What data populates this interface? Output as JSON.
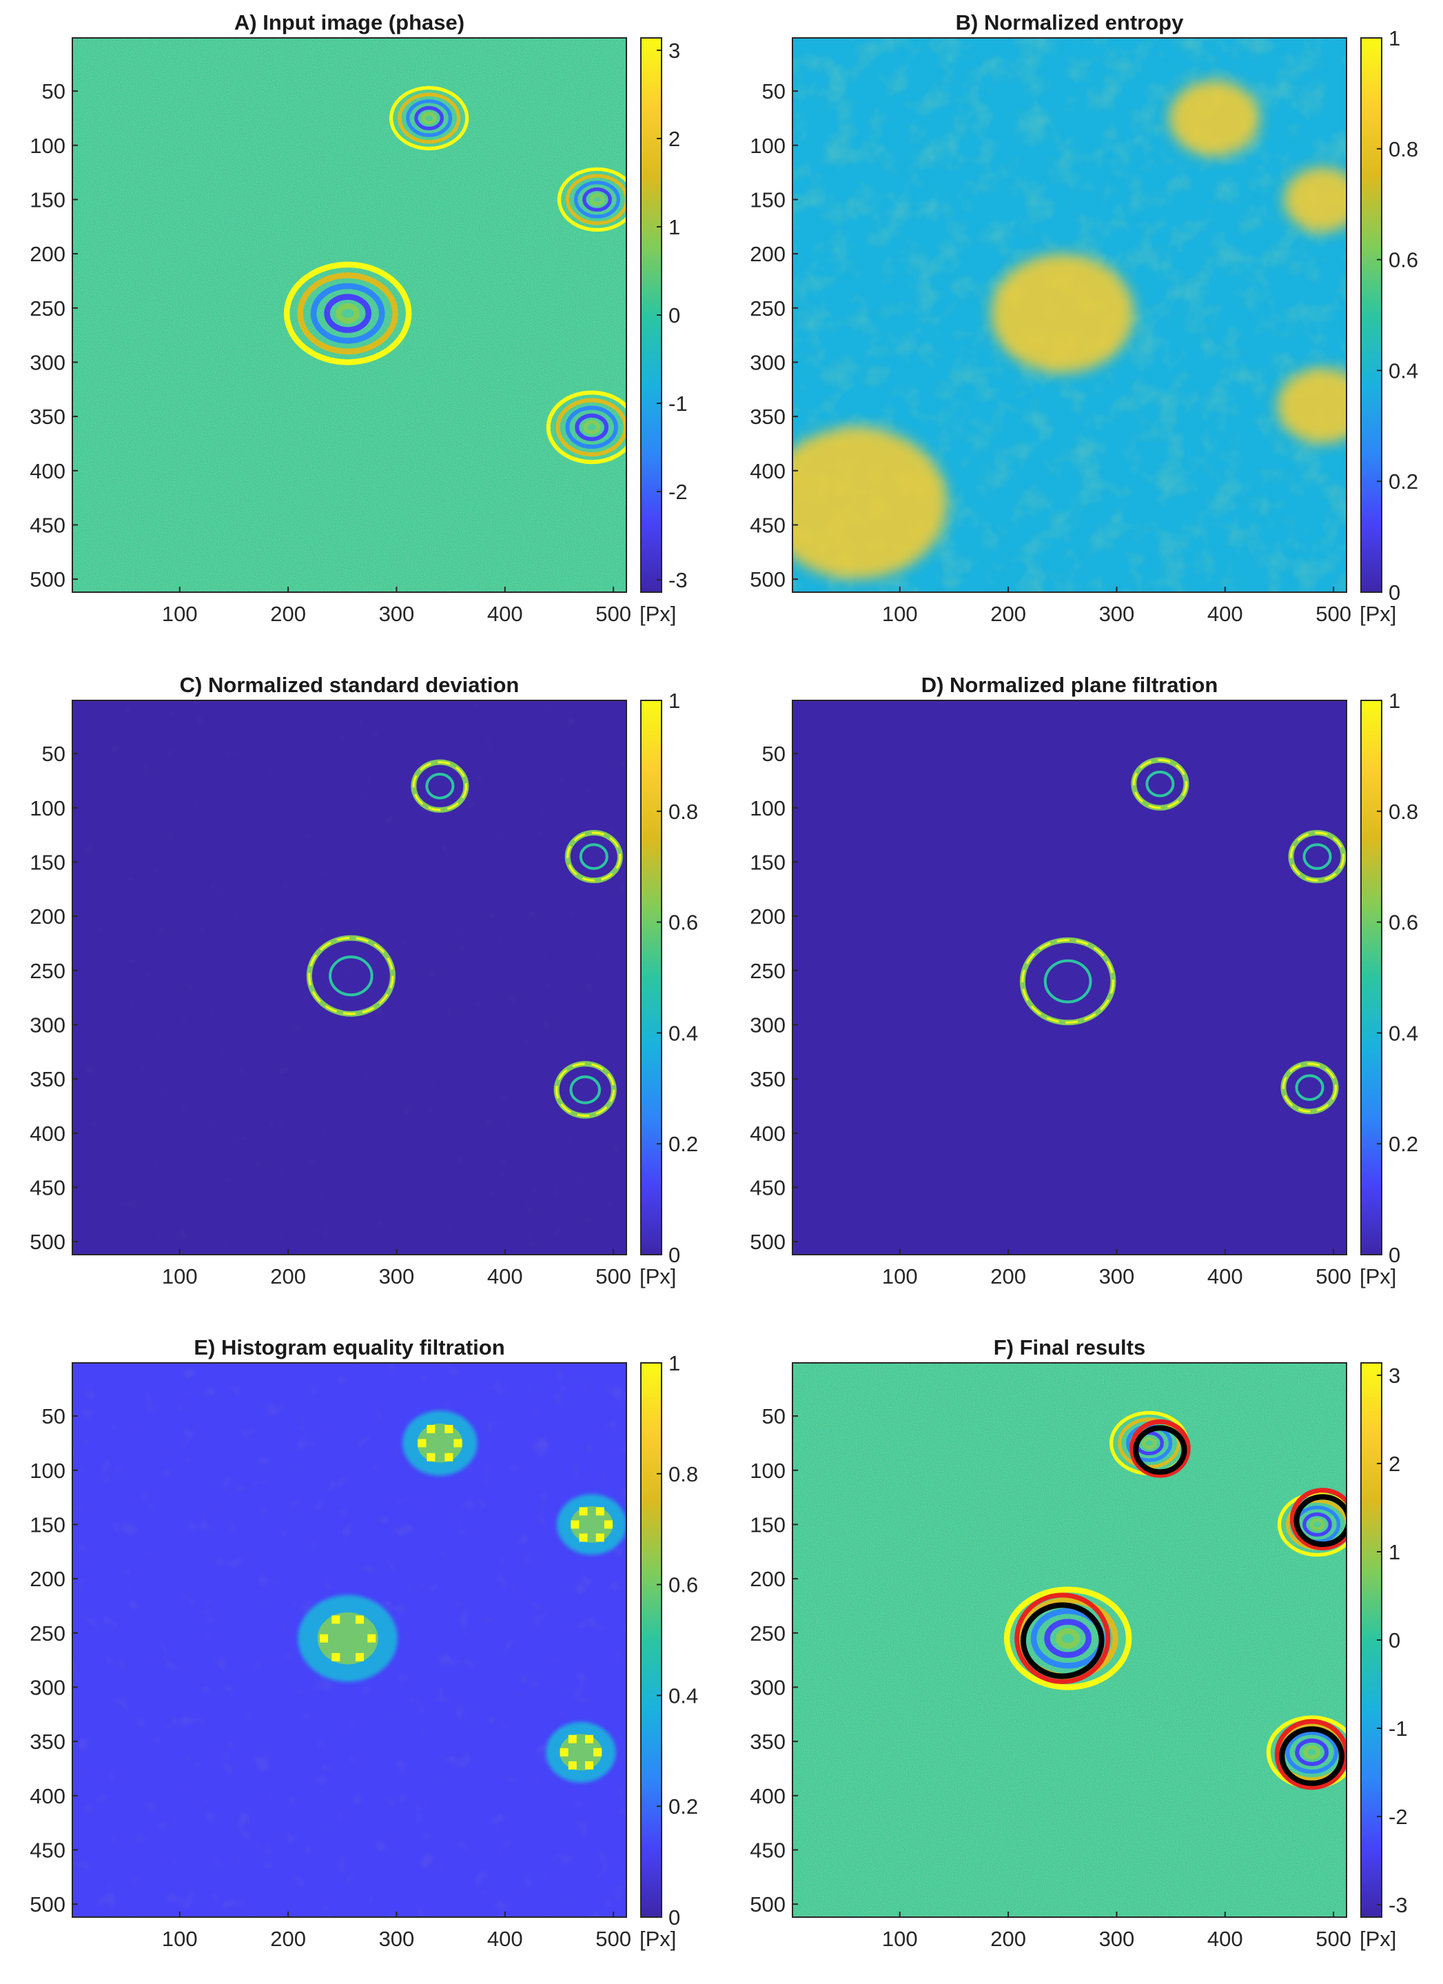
{
  "figure": {
    "unit_label": "[Px]"
  },
  "colormap": {
    "name": "parula",
    "stops": [
      "#3e26a8",
      "#4743f8",
      "#2e87f7",
      "#1ab2de",
      "#2cc5a0",
      "#82cc59",
      "#dbba1f",
      "#fcce2e",
      "#f9fb15"
    ]
  },
  "chart_data": [
    {
      "type": "heatmap",
      "title": "A) Input image (phase)",
      "xlim": [
        1,
        512
      ],
      "ylim": [
        1,
        512
      ],
      "x_ticks": [
        "100",
        "200",
        "300",
        "400",
        "500"
      ],
      "y_ticks": [
        "50",
        "100",
        "150",
        "200",
        "250",
        "300",
        "350",
        "400",
        "450",
        "500"
      ],
      "colorbar": {
        "range": [
          -3.14,
          3.14
        ],
        "ticks": [
          "-3",
          "-2",
          "-1",
          "0",
          "1",
          "2",
          "3"
        ]
      },
      "features": [
        {
          "kind": "fringe_ring",
          "x": 255,
          "y": 255,
          "r": 45
        },
        {
          "kind": "fringe_ring",
          "x": 330,
          "y": 75,
          "r": 28
        },
        {
          "kind": "fringe_ring",
          "x": 485,
          "y": 150,
          "r": 28
        },
        {
          "kind": "fringe_ring",
          "x": 480,
          "y": 360,
          "r": 32
        }
      ]
    },
    {
      "type": "heatmap",
      "title": "B) Normalized entropy",
      "xlim": [
        1,
        512
      ],
      "ylim": [
        1,
        512
      ],
      "x_ticks": [
        "100",
        "200",
        "300",
        "400",
        "500"
      ],
      "y_ticks": [
        "50",
        "100",
        "150",
        "200",
        "250",
        "300",
        "350",
        "400",
        "450",
        "500"
      ],
      "colorbar": {
        "range": [
          0,
          1
        ],
        "ticks": [
          "0",
          "0.2",
          "0.4",
          "0.6",
          "0.8",
          "1"
        ]
      },
      "features": [
        {
          "kind": "high_region",
          "x": 250,
          "y": 255,
          "r": 55
        },
        {
          "kind": "high_region",
          "x": 390,
          "y": 75,
          "r": 35
        },
        {
          "kind": "high_region",
          "x": 490,
          "y": 150,
          "r": 30
        },
        {
          "kind": "high_region",
          "x": 490,
          "y": 340,
          "r": 35
        },
        {
          "kind": "high_region",
          "x": 60,
          "y": 430,
          "r": 70
        }
      ]
    },
    {
      "type": "heatmap",
      "title": "C) Normalized standard deviation",
      "xlim": [
        1,
        512
      ],
      "ylim": [
        1,
        512
      ],
      "x_ticks": [
        "100",
        "200",
        "300",
        "400",
        "500"
      ],
      "y_ticks": [
        "50",
        "100",
        "150",
        "200",
        "250",
        "300",
        "350",
        "400",
        "450",
        "500"
      ],
      "colorbar": {
        "range": [
          0,
          1
        ],
        "ticks": [
          "0",
          "0.2",
          "0.4",
          "0.6",
          "0.8",
          "1"
        ]
      },
      "features": [
        {
          "kind": "ring",
          "x": 258,
          "y": 255,
          "r": 35
        },
        {
          "kind": "ring",
          "x": 340,
          "y": 80,
          "r": 22
        },
        {
          "kind": "ring",
          "x": 482,
          "y": 145,
          "r": 22
        },
        {
          "kind": "ring",
          "x": 474,
          "y": 360,
          "r": 24
        }
      ]
    },
    {
      "type": "heatmap",
      "title": "D) Normalized plane filtration",
      "xlim": [
        1,
        512
      ],
      "ylim": [
        1,
        512
      ],
      "x_ticks": [
        "100",
        "200",
        "300",
        "400",
        "500"
      ],
      "y_ticks": [
        "50",
        "100",
        "150",
        "200",
        "250",
        "300",
        "350",
        "400",
        "450",
        "500"
      ],
      "colorbar": {
        "range": [
          0,
          1
        ],
        "ticks": [
          "0",
          "0.2",
          "0.4",
          "0.6",
          "0.8",
          "1"
        ]
      },
      "features": [
        {
          "kind": "ring",
          "x": 255,
          "y": 260,
          "r": 38
        },
        {
          "kind": "ring",
          "x": 340,
          "y": 78,
          "r": 22
        },
        {
          "kind": "ring",
          "x": 485,
          "y": 145,
          "r": 22
        },
        {
          "kind": "ring",
          "x": 478,
          "y": 358,
          "r": 22
        }
      ]
    },
    {
      "type": "heatmap",
      "title": "E) Histogram equality filtration",
      "xlim": [
        1,
        512
      ],
      "ylim": [
        1,
        512
      ],
      "x_ticks": [
        "100",
        "200",
        "300",
        "400",
        "500"
      ],
      "y_ticks": [
        "50",
        "100",
        "150",
        "200",
        "250",
        "300",
        "350",
        "400",
        "450",
        "500"
      ],
      "colorbar": {
        "range": [
          0,
          1
        ],
        "ticks": [
          "0",
          "0.2",
          "0.4",
          "0.6",
          "0.8",
          "1"
        ]
      },
      "features": [
        {
          "kind": "blob",
          "x": 255,
          "y": 255,
          "r": 40
        },
        {
          "kind": "blob",
          "x": 340,
          "y": 75,
          "r": 30
        },
        {
          "kind": "blob",
          "x": 480,
          "y": 150,
          "r": 28
        },
        {
          "kind": "blob",
          "x": 470,
          "y": 360,
          "r": 28
        }
      ]
    },
    {
      "type": "heatmap",
      "title": "F) Final results",
      "xlim": [
        1,
        512
      ],
      "ylim": [
        1,
        512
      ],
      "x_ticks": [
        "100",
        "200",
        "300",
        "400",
        "500"
      ],
      "y_ticks": [
        "50",
        "100",
        "150",
        "200",
        "250",
        "300",
        "350",
        "400",
        "450",
        "500"
      ],
      "colorbar": {
        "range": [
          -3.14,
          3.14
        ],
        "ticks": [
          "-3",
          "-2",
          "-1",
          "0",
          "1",
          "2",
          "3"
        ]
      },
      "features": [
        {
          "kind": "fringe_ring",
          "x": 255,
          "y": 255,
          "r": 45
        },
        {
          "kind": "fringe_ring",
          "x": 330,
          "y": 75,
          "r": 28
        },
        {
          "kind": "fringe_ring",
          "x": 485,
          "y": 150,
          "r": 28
        },
        {
          "kind": "fringe_ring",
          "x": 480,
          "y": 360,
          "r": 32
        }
      ],
      "detections": [
        {
          "x": 250,
          "y": 255,
          "r": 42,
          "outline_color": "#e8231f",
          "contour_color": "#000000"
        },
        {
          "x": 340,
          "y": 80,
          "r": 26,
          "outline_color": "#e8231f",
          "contour_color": "#000000"
        },
        {
          "x": 490,
          "y": 145,
          "r": 28,
          "outline_color": "#e8231f",
          "contour_color": "#000000"
        },
        {
          "x": 480,
          "y": 362,
          "r": 32,
          "outline_color": "#e8231f",
          "contour_color": "#000000"
        }
      ]
    }
  ]
}
